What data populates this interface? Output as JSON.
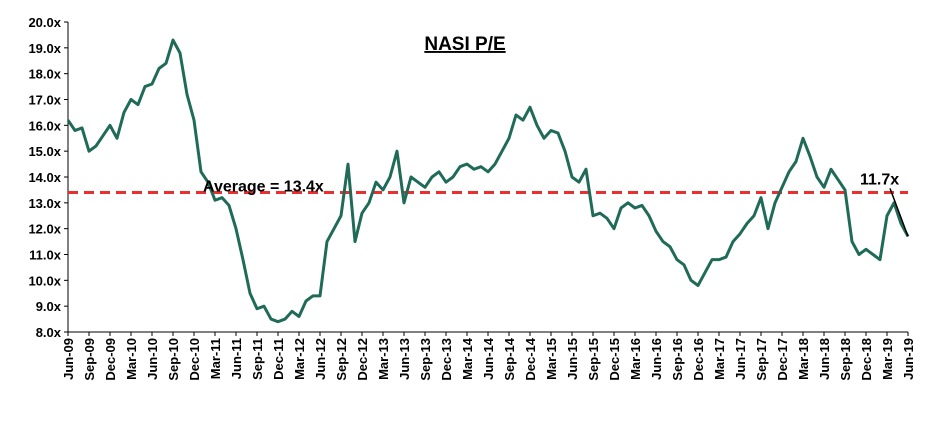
{
  "chart_data": {
    "type": "line",
    "title": "NASI P/E",
    "categories": [
      "Jun-09",
      null,
      null,
      "Sep-09",
      null,
      null,
      "Dec-09",
      null,
      null,
      "Mar-10",
      null,
      null,
      "Jun-10",
      null,
      null,
      "Sep-10",
      null,
      null,
      "Dec-10",
      null,
      null,
      "Mar-11",
      null,
      null,
      "Jun-11",
      null,
      null,
      "Sep-11",
      null,
      null,
      "Dec-11",
      null,
      null,
      "Mar-12",
      null,
      null,
      "Jun-12",
      null,
      null,
      "Sep-12",
      null,
      null,
      "Dec-12",
      null,
      null,
      "Mar-13",
      null,
      null,
      "Jun-13",
      null,
      null,
      "Sep-13",
      null,
      null,
      "Dec-13",
      null,
      null,
      "Mar-14",
      null,
      null,
      "Jun-14",
      null,
      null,
      "Sep-14",
      null,
      null,
      "Dec-14",
      null,
      null,
      "Mar-15",
      null,
      null,
      "Jun-15",
      null,
      null,
      "Sep-15",
      null,
      null,
      "Dec-15",
      null,
      null,
      "Mar-16",
      null,
      null,
      "Jun-16",
      null,
      null,
      "Sep-16",
      null,
      null,
      "Dec-16",
      null,
      null,
      "Mar-17",
      null,
      null,
      "Jun-17",
      null,
      null,
      "Sep-17",
      null,
      null,
      "Dec-17",
      null,
      null,
      "Mar-18",
      null,
      null,
      "Jun-18",
      null,
      null,
      "Sep-18",
      null,
      null,
      "Dec-18",
      null,
      null,
      "Mar-19",
      null,
      null,
      "Jun-19"
    ],
    "values": [
      16.2,
      15.8,
      15.9,
      15.0,
      15.2,
      15.6,
      16.0,
      15.5,
      16.5,
      17.0,
      16.8,
      17.5,
      17.6,
      18.2,
      18.4,
      19.3,
      18.8,
      17.2,
      16.2,
      14.2,
      13.8,
      13.1,
      13.2,
      12.9,
      12.0,
      10.8,
      9.5,
      8.9,
      9.0,
      8.5,
      8.4,
      8.5,
      8.8,
      8.6,
      9.2,
      9.4,
      9.4,
      11.5,
      12.0,
      12.5,
      14.5,
      11.5,
      12.6,
      13.0,
      13.8,
      13.5,
      14.0,
      15.0,
      13.0,
      14.0,
      13.8,
      13.6,
      14.0,
      14.2,
      13.8,
      14.0,
      14.4,
      14.5,
      14.3,
      14.4,
      14.2,
      14.5,
      15.0,
      15.5,
      16.4,
      16.2,
      16.7,
      16.0,
      15.5,
      15.8,
      15.7,
      15.0,
      14.0,
      13.8,
      14.3,
      12.5,
      12.6,
      12.4,
      12.0,
      12.8,
      13.0,
      12.8,
      12.9,
      12.5,
      11.9,
      11.5,
      11.3,
      10.8,
      10.6,
      10.0,
      9.8,
      10.3,
      10.8,
      10.8,
      10.9,
      11.5,
      11.8,
      12.2,
      12.5,
      13.2,
      12.0,
      13.0,
      13.6,
      14.2,
      14.6,
      15.5,
      14.8,
      14.0,
      13.6,
      14.3,
      13.9,
      13.5,
      11.5,
      11.0,
      11.2,
      11.0,
      10.8,
      12.5,
      13.0,
      12.2,
      11.7
    ],
    "color": "#1f6b57",
    "ylim": [
      8,
      20
    ],
    "yticks": [
      {
        "value": 8,
        "label": "8.0x"
      },
      {
        "value": 9,
        "label": "9.0x"
      },
      {
        "value": 10,
        "label": "10.0x"
      },
      {
        "value": 11,
        "label": "11.0x"
      },
      {
        "value": 12,
        "label": "12.0x"
      },
      {
        "value": 13,
        "label": "13.0x"
      },
      {
        "value": 14,
        "label": "14.0x"
      },
      {
        "value": 15,
        "label": "15.0x"
      },
      {
        "value": 16,
        "label": "16.0x"
      },
      {
        "value": 17,
        "label": "17.0x"
      },
      {
        "value": 18,
        "label": "18.0x"
      },
      {
        "value": 19,
        "label": "19.0x"
      },
      {
        "value": 20,
        "label": "20.0x"
      }
    ],
    "average_line": {
      "value": 13.4,
      "label": "Average = 13.4x",
      "color": "#e8302f"
    },
    "end_annotation": {
      "value": 11.7,
      "label": "11.7x"
    }
  }
}
